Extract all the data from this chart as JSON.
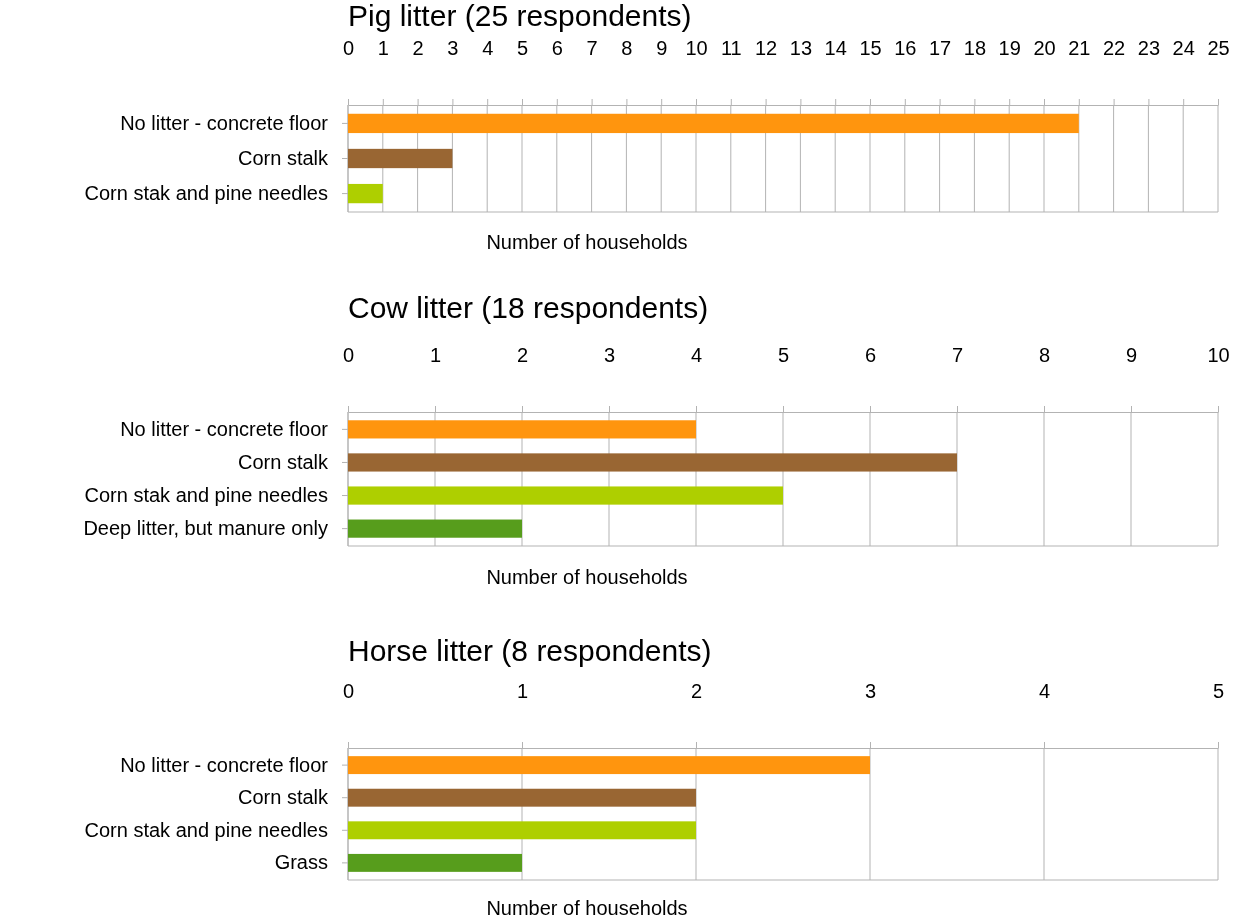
{
  "chart_data": [
    {
      "type": "bar",
      "orientation": "horizontal",
      "title": "Pig litter (25 respondents)",
      "xlabel": "Number of households",
      "categories": [
        "No litter - concrete floor",
        "Corn stalk",
        "Corn stak and pine needles"
      ],
      "values": [
        21,
        3,
        1
      ],
      "colors": [
        "#ff950e",
        "#996633",
        "#aecf00"
      ],
      "xlim": [
        0,
        25
      ],
      "xticks": [
        0,
        1,
        2,
        3,
        4,
        5,
        6,
        7,
        8,
        9,
        10,
        11,
        12,
        13,
        14,
        15,
        16,
        17,
        18,
        19,
        20,
        21,
        22,
        23,
        24,
        25
      ],
      "grid": "x"
    },
    {
      "type": "bar",
      "orientation": "horizontal",
      "title": "Cow litter (18 respondents)",
      "xlabel": "Number of households",
      "categories": [
        "No litter - concrete floor",
        "Corn stalk",
        "Corn stak and pine needles",
        "Deep litter, but manure only"
      ],
      "values": [
        4,
        7,
        5,
        2
      ],
      "colors": [
        "#ff950e",
        "#996633",
        "#aecf00",
        "#579d1c"
      ],
      "xlim": [
        0,
        10
      ],
      "xticks": [
        0,
        1,
        2,
        3,
        4,
        5,
        6,
        7,
        8,
        9,
        10
      ],
      "grid": "x"
    },
    {
      "type": "bar",
      "orientation": "horizontal",
      "title": "Horse litter (8 respondents)",
      "xlabel": "Number of households",
      "categories": [
        "No litter - concrete floor",
        "Corn stalk",
        "Corn stak and pine needles",
        "Grass"
      ],
      "values": [
        3,
        2,
        2,
        1
      ],
      "colors": [
        "#ff950e",
        "#996633",
        "#aecf00",
        "#579d1c"
      ],
      "xlim": [
        0,
        5
      ],
      "xticks": [
        0,
        1,
        2,
        3,
        4,
        5
      ],
      "grid": "x"
    }
  ]
}
